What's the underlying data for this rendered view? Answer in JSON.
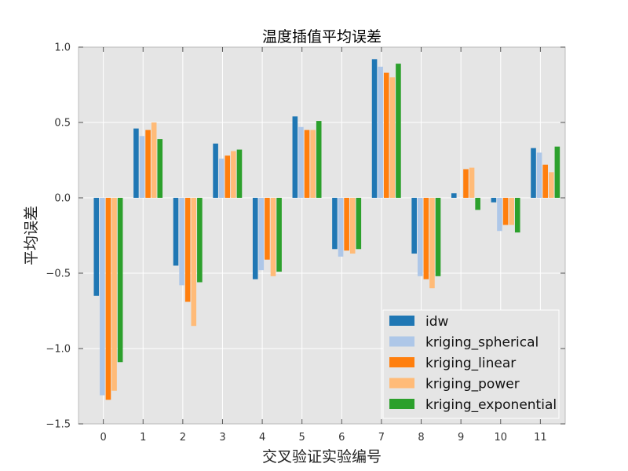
{
  "chart_data": {
    "type": "bar",
    "title": "温度插值平均误差",
    "xlabel": "交叉验证实验编号",
    "ylabel": "平均误差",
    "categories": [
      "0",
      "1",
      "2",
      "3",
      "4",
      "5",
      "6",
      "7",
      "8",
      "9",
      "10",
      "11"
    ],
    "ylim": [
      -1.5,
      1.0
    ],
    "yticks": [
      -1.5,
      -1.0,
      -0.5,
      0.0,
      0.5,
      1.0
    ],
    "ytick_labels": [
      "−1.5",
      "−1.0",
      "−0.5",
      "0.0",
      "0.5",
      "1.0"
    ],
    "grid": true,
    "legend_position": "lower-right",
    "series": [
      {
        "name": "idw",
        "color": "#1f77b4",
        "values": [
          -0.65,
          0.46,
          -0.45,
          0.36,
          -0.54,
          0.54,
          -0.34,
          0.92,
          -0.37,
          0.03,
          -0.03,
          0.33
        ]
      },
      {
        "name": "kriging_spherical",
        "color": "#aec7e8",
        "values": [
          -1.31,
          0.41,
          -0.58,
          0.26,
          -0.48,
          0.47,
          -0.39,
          0.87,
          -0.52,
          0.0,
          -0.22,
          0.3
        ]
      },
      {
        "name": "kriging_linear",
        "color": "#ff7f0e",
        "values": [
          -1.34,
          0.45,
          -0.69,
          0.28,
          -0.41,
          0.45,
          -0.35,
          0.83,
          -0.54,
          0.19,
          -0.18,
          0.22
        ]
      },
      {
        "name": "kriging_power",
        "color": "#ffbb78",
        "values": [
          -1.28,
          0.5,
          -0.85,
          0.31,
          -0.52,
          0.45,
          -0.37,
          0.8,
          -0.6,
          0.2,
          -0.18,
          0.17
        ]
      },
      {
        "name": "kriging_exponential",
        "color": "#2ca02c",
        "values": [
          -1.09,
          0.39,
          -0.56,
          0.32,
          -0.49,
          0.51,
          -0.34,
          0.89,
          -0.52,
          -0.08,
          -0.23,
          0.34
        ]
      }
    ]
  }
}
